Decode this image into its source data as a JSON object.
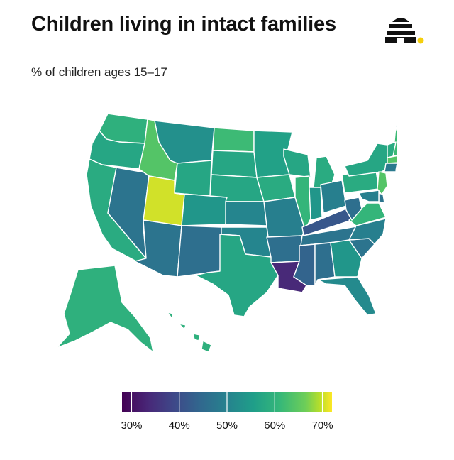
{
  "header": {
    "title": "Children living in intact families",
    "subtitle": "% of children ages 15–17"
  },
  "logo": {
    "icon": "beehive-logo-icon",
    "accent_color": "#f5cf0c"
  },
  "map_data": {
    "type": "choropleth",
    "metric": "% of children ages 15–17",
    "colorscale": "viridis",
    "range": [
      28,
      72
    ],
    "states": {
      "WA": 56,
      "OR": 54,
      "CA": 55,
      "NV": 45,
      "ID": 60,
      "MT": 50,
      "WY": 54,
      "UT": 69,
      "CO": 51,
      "AZ": 45,
      "NM": 44,
      "ND": 58,
      "SD": 54,
      "NE": 54,
      "KS": 48,
      "OK": 48,
      "TX": 54,
      "MN": 53,
      "IA": 55,
      "MO": 47,
      "AR": 44,
      "LA": 33,
      "WI": 54,
      "IL": 57,
      "MI": 55,
      "IN": 51,
      "OH": 47,
      "KY": 40,
      "TN": 45,
      "MS": 42,
      "AL": 44,
      "GA": 51,
      "FL": 49,
      "SC": 45,
      "NC": 47,
      "VA": 57,
      "WV": 44,
      "PA": 55,
      "NY": 54,
      "ME": 52,
      "NH": 58,
      "VT": 55,
      "MA": 60,
      "RI": 54,
      "CT": 46,
      "NJ": 60,
      "DE": 45,
      "MD": 47,
      "AK": 56,
      "HI": 56
    }
  },
  "legend": {
    "ticks": [
      30,
      40,
      50,
      60,
      70
    ],
    "tick_labels": [
      "30%",
      "40%",
      "50%",
      "60%",
      "70%"
    ]
  }
}
